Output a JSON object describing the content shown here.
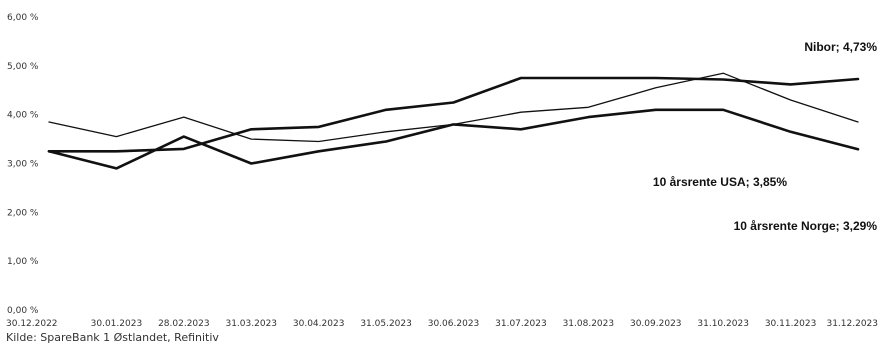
{
  "chart_data": {
    "type": "line",
    "title": "",
    "xlabel": "",
    "ylabel": "",
    "ylim": [
      0,
      6
    ],
    "y_tick_labels": [
      "0,00 %",
      "1,00 %",
      "2,00 %",
      "3,00 %",
      "4,00 %",
      "5,00 %",
      "6,00 %"
    ],
    "y_tick_values": [
      0,
      1,
      2,
      3,
      4,
      5,
      6
    ],
    "x_tick_labels": [
      "30.12.2022",
      "30.01.2023",
      "28.02.2023",
      "31.03.2023",
      "30.04.2023",
      "31.05.2023",
      "30.06.2023",
      "31.07.2023",
      "31.08.2023",
      "30.09.2023",
      "31.10.2023",
      "30.11.2023",
      "31.12.2023"
    ],
    "x": [
      "30.12.2022",
      "30.01.2023",
      "28.02.2023",
      "31.03.2023",
      "30.04.2023",
      "31.05.2023",
      "30.06.2023",
      "31.07.2023",
      "31.08.2023",
      "30.09.2023",
      "31.10.2023",
      "30.11.2023",
      "31.12.2023"
    ],
    "grid": false,
    "legend": "none",
    "series": [
      {
        "name": "Nibor",
        "label": "Nibor; 4,73%",
        "color": "#111111",
        "stroke_weight": "heavy",
        "values": [
          3.25,
          3.25,
          3.3,
          3.7,
          3.75,
          4.1,
          4.25,
          4.75,
          4.75,
          4.75,
          4.72,
          4.62,
          4.73
        ]
      },
      {
        "name": "10 årsrente USA",
        "label": "10 årsrente USA; 3,85%",
        "color": "#111111",
        "stroke_weight": "thin",
        "values": [
          3.85,
          3.55,
          3.95,
          3.5,
          3.45,
          3.65,
          3.8,
          4.05,
          4.15,
          4.55,
          4.85,
          4.3,
          3.85
        ]
      },
      {
        "name": "10 årsrente Norge",
        "label": "10 årsrente Norge; 3,29%",
        "color": "#111111",
        "stroke_weight": "heavy",
        "values": [
          3.25,
          2.9,
          3.55,
          3.0,
          3.25,
          3.45,
          3.8,
          3.7,
          3.95,
          4.1,
          4.1,
          3.65,
          3.29
        ]
      }
    ]
  },
  "source_text": "Kilde: SpareBank 1 Østlandet, Refinitiv"
}
